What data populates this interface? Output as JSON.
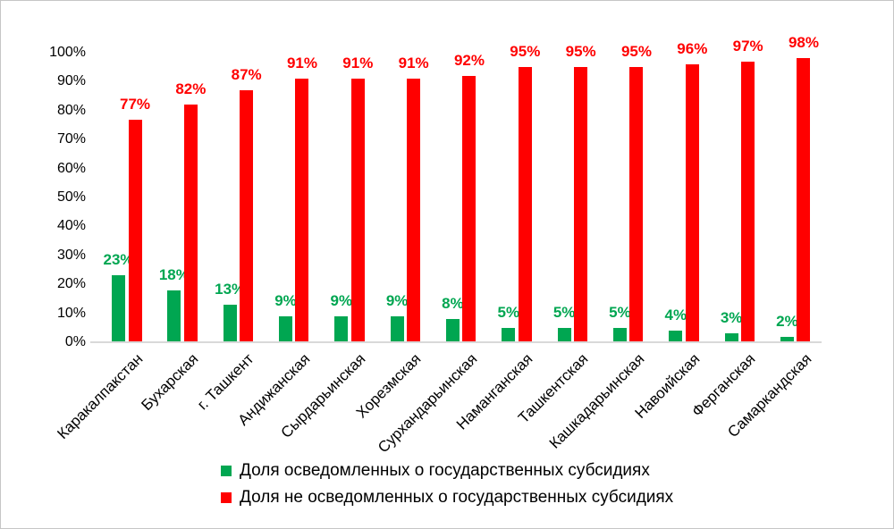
{
  "chart_data": {
    "type": "bar",
    "title": "",
    "categories": [
      "Каракалпакстан",
      "Бухарская",
      "г. Ташкент",
      "Андижанская",
      "Сырдарьинская",
      "Хорезмская",
      "Сурхандарьинская",
      "Наманганская",
      "Ташкентская",
      "Кашкадарьинская",
      "Навоийская",
      "Ферганская",
      "Самаркандская"
    ],
    "series": [
      {
        "name": "Доля осведомленных о государственных субсидиях",
        "color": "#00A651",
        "values": [
          23,
          18,
          13,
          9,
          9,
          9,
          8,
          5,
          5,
          5,
          4,
          3,
          2
        ],
        "labels": [
          "23%",
          "18%",
          "13%",
          "9%",
          "9%",
          "9%",
          "8%",
          "5%",
          "5%",
          "5%",
          "4%",
          "3%",
          "2%"
        ]
      },
      {
        "name": "Доля не осведомленных о государственных субсидиях",
        "color": "#FF0000",
        "values": [
          77,
          82,
          87,
          91,
          91,
          91,
          92,
          95,
          95,
          95,
          96,
          97,
          98
        ],
        "labels": [
          "77%",
          "82%",
          "87%",
          "91%",
          "91%",
          "91%",
          "92%",
          "95%",
          "95%",
          "95%",
          "96%",
          "97%",
          "98%"
        ]
      }
    ],
    "y_axis": {
      "min": 0,
      "max": 100,
      "ticks": [
        "0%",
        "10%",
        "20%",
        "30%",
        "40%",
        "50%",
        "60%",
        "70%",
        "80%",
        "90%",
        "100%"
      ]
    },
    "grid": false,
    "legend_position": "bottom",
    "axis_line_color": "#D9D9D9",
    "text_color": "#000000"
  }
}
